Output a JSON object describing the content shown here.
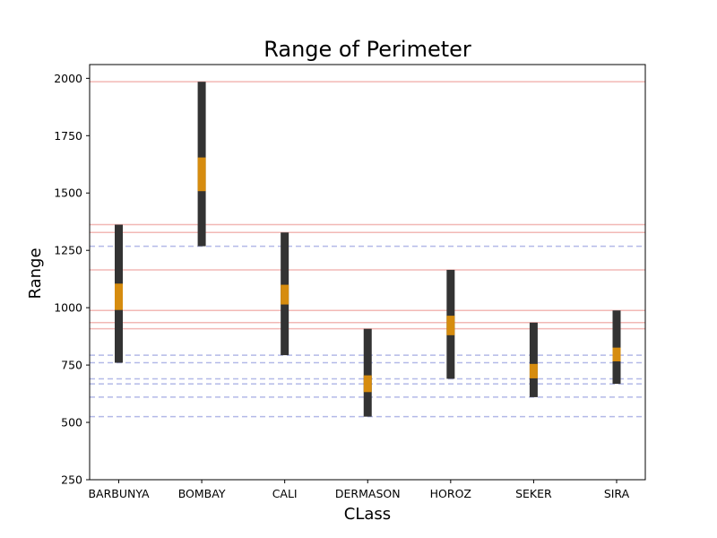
{
  "chart_data": {
    "type": "bar",
    "title": "Range of Perimeter",
    "xlabel": "CLass",
    "ylabel": "Range",
    "ylim": [
      250,
      2060
    ],
    "yticks": [
      250,
      500,
      750,
      1000,
      1250,
      1500,
      1750,
      2000
    ],
    "categories": [
      "BARBUNYA",
      "BOMBAY",
      "CALI",
      "DERMASON",
      "HOROZ",
      "SEKER",
      "SIRA"
    ],
    "series": [
      {
        "ranges": [
          {
            "min": 760,
            "max": 1362,
            "mid_low": 990,
            "mid_high": 1105
          },
          {
            "min": 1268,
            "max": 1985,
            "mid_low": 1508,
            "mid_high": 1655
          },
          {
            "min": 793,
            "max": 1328,
            "mid_low": 1014,
            "mid_high": 1100
          },
          {
            "min": 525,
            "max": 908,
            "mid_low": 632,
            "mid_high": 705
          },
          {
            "min": 690,
            "max": 1165,
            "mid_low": 880,
            "mid_high": 965
          },
          {
            "min": 610,
            "max": 935,
            "mid_low": 692,
            "mid_high": 755
          },
          {
            "min": 668,
            "max": 988,
            "mid_low": 766,
            "mid_high": 826
          }
        ]
      }
    ],
    "colors": {
      "range_bar": "#333333",
      "middle_segment": "#d68c0f",
      "max_line": "#f2b8b5",
      "min_line": "#b3b9e8"
    },
    "max_lines": [
      1985,
      1362,
      1328,
      1165,
      988,
      935,
      908
    ],
    "min_lines": [
      1268,
      793,
      760,
      690,
      668,
      610,
      525
    ],
    "grid": false,
    "legend": "none"
  }
}
